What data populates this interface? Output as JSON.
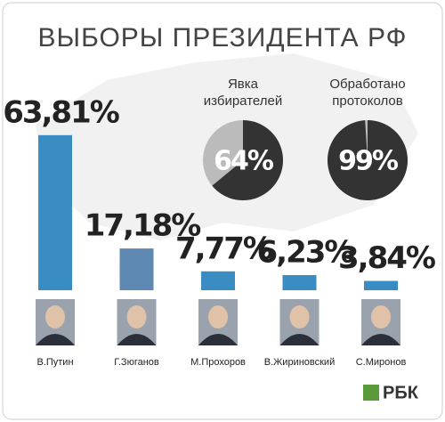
{
  "chart_data": [
    {
      "type": "bar",
      "title": "ВЫБОРЫ ПРЕЗИДЕНТА РФ",
      "categories": [
        "В.Путин",
        "Г.Зюганов",
        "М.Прохоров",
        "В.Жириновский",
        "С.Миронов"
      ],
      "values": [
        63.81,
        17.18,
        7.77,
        6.23,
        3.84
      ],
      "value_labels": [
        "63,81%",
        "17,18%",
        "7,77%",
        "6,23%",
        "3,84%"
      ],
      "colors": [
        "#3a8dc2",
        "#5e89b2",
        "#3a8dc2",
        "#3a8dc2",
        "#3a8dc2"
      ]
    },
    {
      "type": "pie",
      "title": [
        "Явка",
        "избирателей"
      ],
      "value": 64,
      "value_label": "64%",
      "colors": [
        "#333333",
        "#bbbbbb"
      ]
    },
    {
      "type": "pie",
      "title": [
        "Обработано",
        "протоколов"
      ],
      "value": 99,
      "value_label": "99%",
      "colors": [
        "#333333",
        "#bbbbbb"
      ]
    }
  ],
  "logo": "РБК"
}
